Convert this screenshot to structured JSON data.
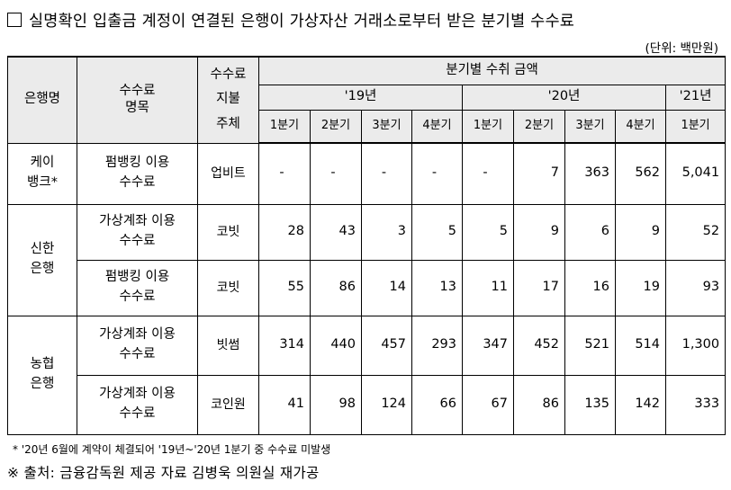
{
  "title": "실명확인 입출금 계정이 연결된 은행이 가상자산 거래소로부터 받은 분기별 수수료",
  "unit": "(단위: 백만원)",
  "headers": {
    "bank": "은행명",
    "fee_name": "수수료\n명목",
    "payer": "수수료\n지불\n주체",
    "period_group": "분기별 수취 금액",
    "years": [
      "'19년",
      "'20년",
      "'21년"
    ],
    "quarters": [
      "1분기",
      "2분기",
      "3분기",
      "4분기",
      "1분기",
      "2분기",
      "3분기",
      "4분기",
      "1분기"
    ]
  },
  "rows": [
    {
      "bank": "케이\n뱅크*",
      "fee": "펌뱅킹 이용\n수수료",
      "payer": "업비트",
      "values": [
        "-",
        "-",
        "-",
        "-",
        "-",
        "7",
        "363",
        "562",
        "5,041"
      ]
    },
    {
      "bank": "신한\n은행",
      "fee": "가상계좌 이용\n수수료",
      "payer": "코빗",
      "values": [
        "28",
        "43",
        "3",
        "5",
        "5",
        "9",
        "6",
        "9",
        "52"
      ]
    },
    {
      "bank": "",
      "fee": "펌뱅킹 이용\n수수료",
      "payer": "코빗",
      "values": [
        "55",
        "86",
        "14",
        "13",
        "11",
        "17",
        "16",
        "19",
        "93"
      ]
    },
    {
      "bank": "농협\n은행",
      "fee": "가상계좌 이용\n수수료",
      "payer": "빗썸",
      "values": [
        "314",
        "440",
        "457",
        "293",
        "347",
        "452",
        "521",
        "514",
        "1,300"
      ]
    },
    {
      "bank": "",
      "fee": "가상계좌 이용\n수수료",
      "payer": "코인원",
      "values": [
        "41",
        "98",
        "124",
        "66",
        "67",
        "86",
        "135",
        "142",
        "333"
      ]
    }
  ],
  "footnote": "* '20년 6월에 계약이 체결되어 '19년~'20년 1분기 중 수수료 미발생",
  "source": "※ 출처: 금융감독원 제공 자료 김병욱 의원실 재가공"
}
